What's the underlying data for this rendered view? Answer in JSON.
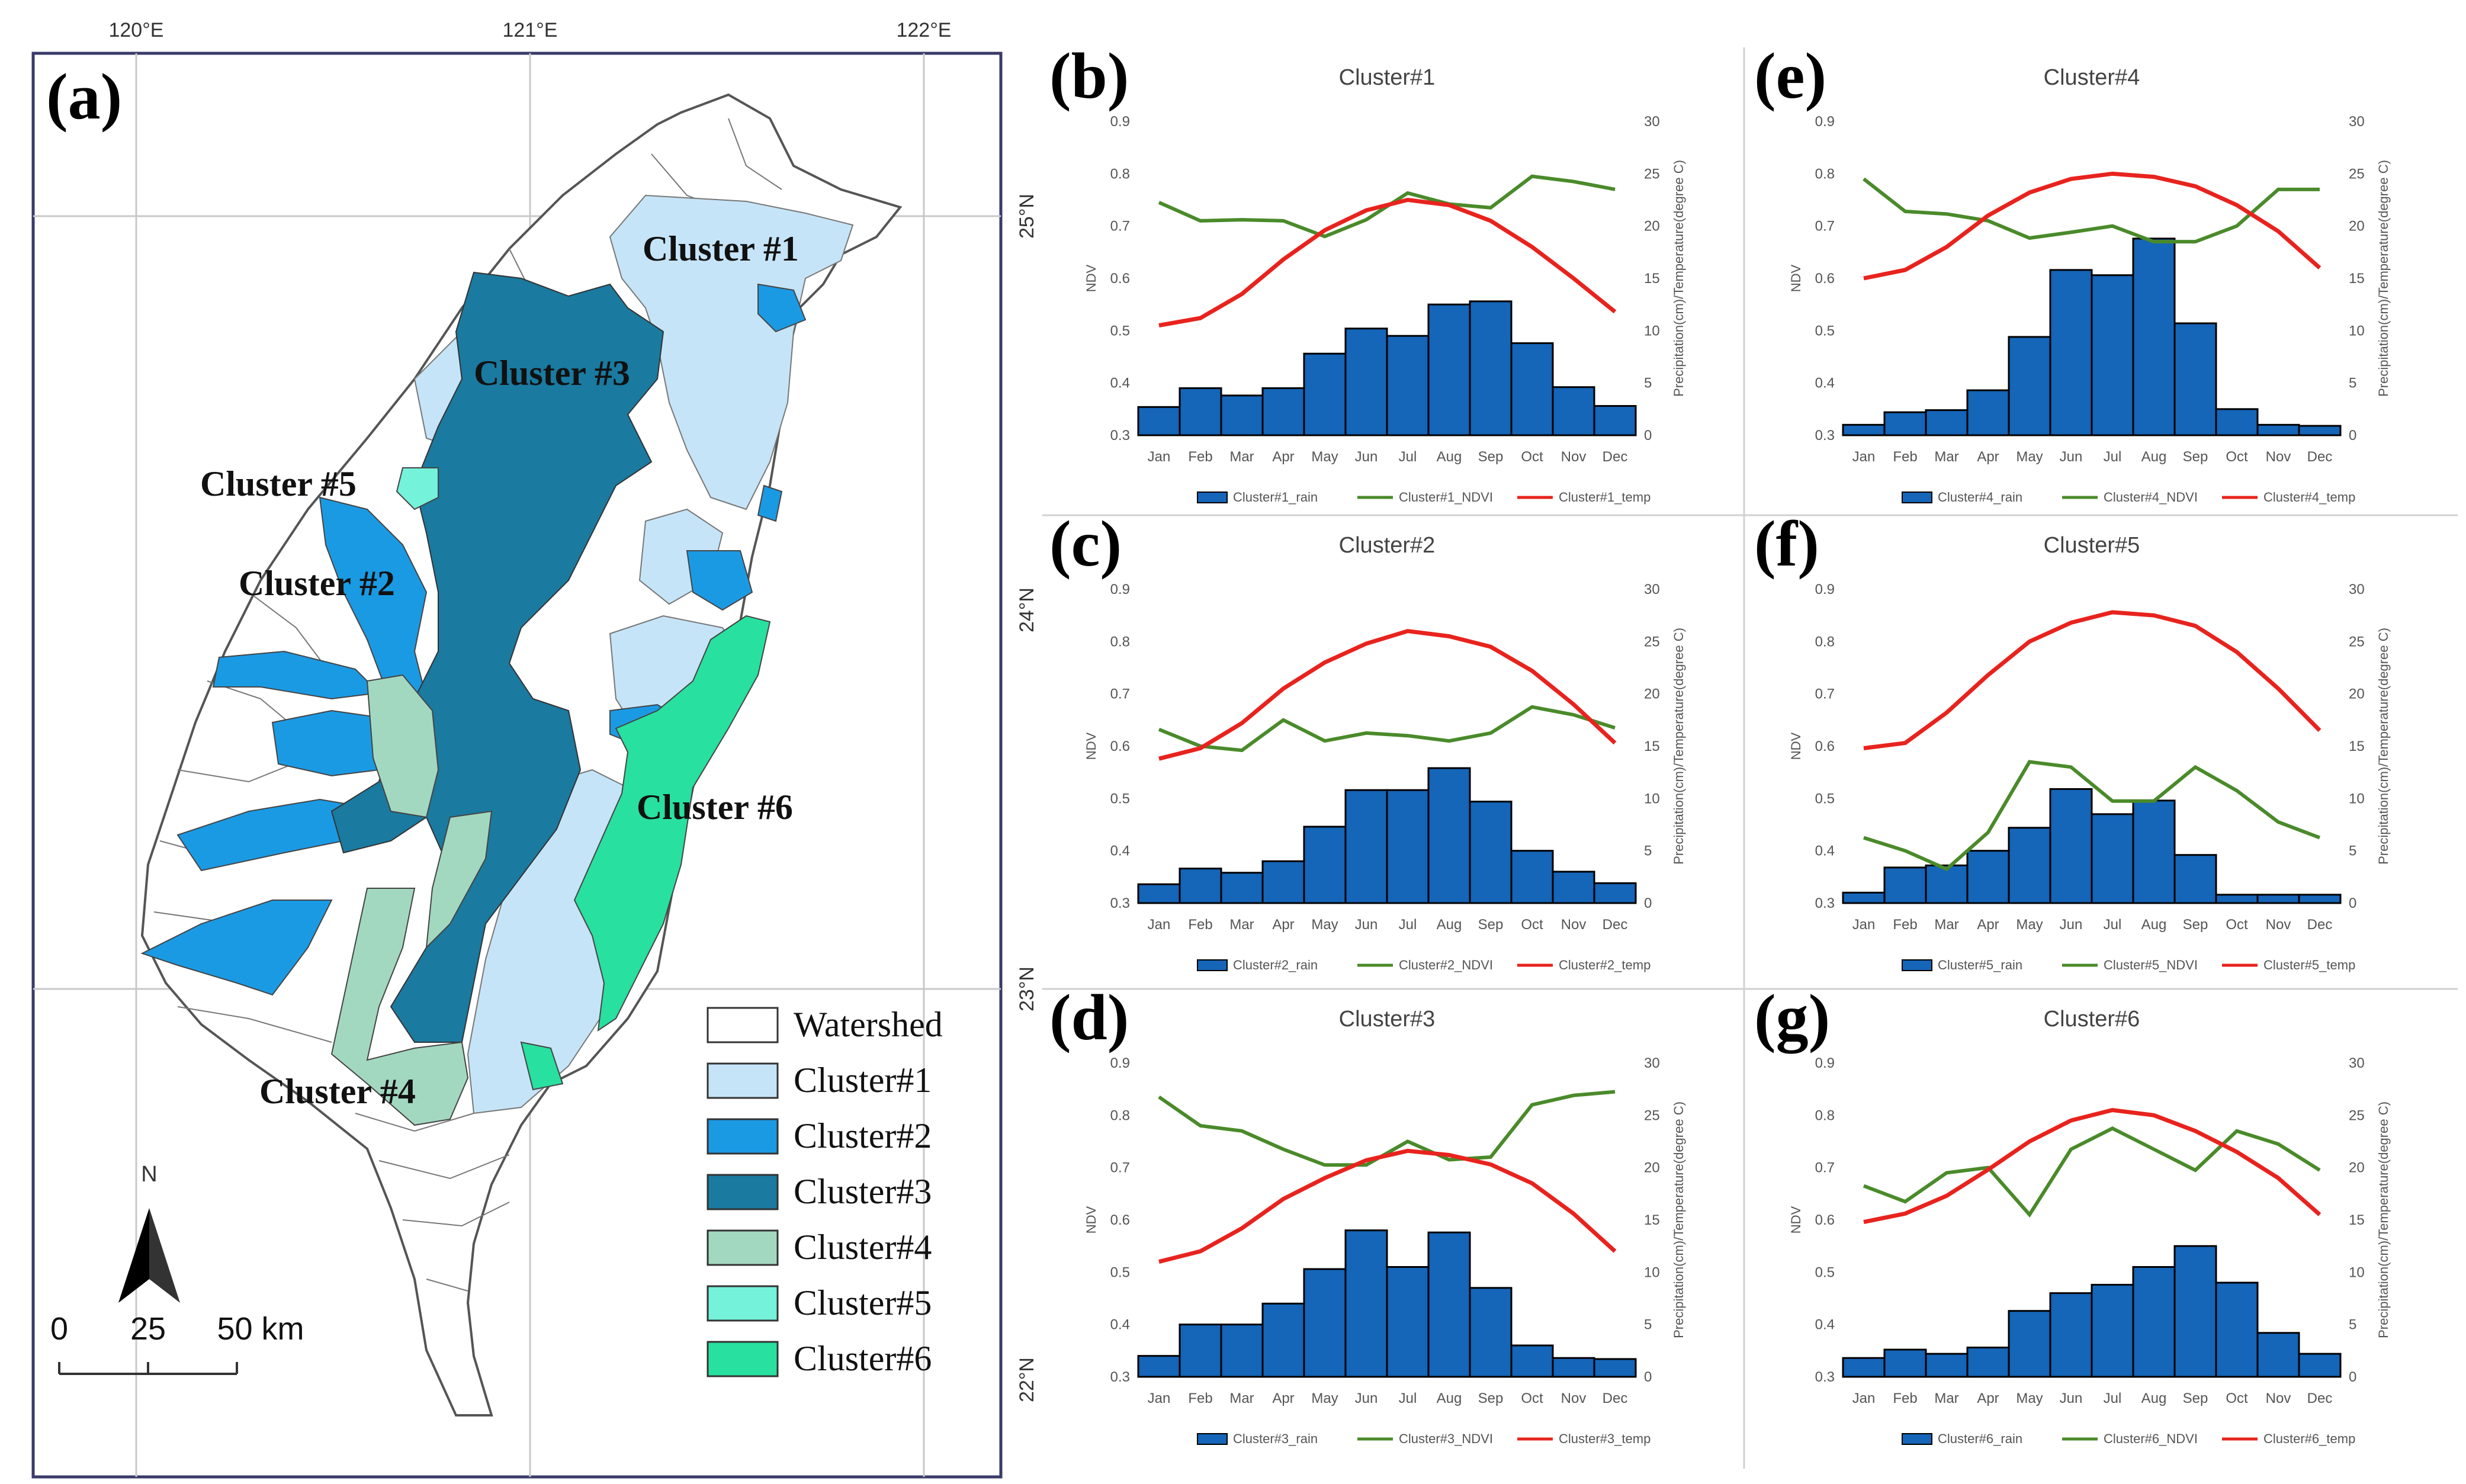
{
  "map": {
    "panel_label": "(a)",
    "lon_labels": [
      "120°E",
      "121°E",
      "122°E"
    ],
    "lat_labels": [
      "25°N",
      "24°N",
      "23°N",
      "22°N"
    ],
    "cluster_labels": [
      "Cluster #1",
      "Cluster #3",
      "Cluster #5",
      "Cluster #2",
      "Cluster #6",
      "Cluster #4"
    ],
    "legend": [
      {
        "label": "Watershed",
        "color": "#ffffff"
      },
      {
        "label": "Cluster#1",
        "color": "#c6e4f8"
      },
      {
        "label": "Cluster#2",
        "color": "#1b9ae4"
      },
      {
        "label": "Cluster#3",
        "color": "#1a7aa0"
      },
      {
        "label": "Cluster#4",
        "color": "#a3d8c0"
      },
      {
        "label": "Cluster#5",
        "color": "#74f2da"
      },
      {
        "label": "Cluster#6",
        "color": "#28e0a0"
      }
    ],
    "north_label": "N",
    "scale_labels": [
      "0",
      "25",
      "50 km"
    ]
  },
  "chart_common": {
    "months": [
      "Jan",
      "Feb",
      "Mar",
      "Apr",
      "May",
      "Jun",
      "Jul",
      "Aug",
      "Sep",
      "Oct",
      "Nov",
      "Dec"
    ],
    "left_ticks": [
      "0.3",
      "0.4",
      "0.5",
      "0.6",
      "0.7",
      "0.8",
      "0.9"
    ],
    "right_ticks": [
      "0",
      "5",
      "10",
      "15",
      "20",
      "25",
      "30"
    ],
    "left_axis_label": "NDV",
    "right_axis_label": "Precipitation(cm)/Temperature(degree C)"
  },
  "chart_data": [
    {
      "panel": "(b)",
      "type": "bar+line",
      "title": "Cluster#1",
      "legend": [
        "Cluster#1_rain",
        "Cluster#1_NDVI",
        "Cluster#1_temp"
      ],
      "ylim_left": [
        0.3,
        0.9
      ],
      "ylim_right": [
        0,
        30
      ],
      "rain": [
        2.7,
        4.5,
        3.8,
        4.5,
        7.8,
        10.2,
        9.5,
        12.5,
        12.8,
        8.8,
        4.6,
        2.8
      ],
      "ndvi": [
        0.745,
        0.71,
        0.712,
        0.71,
        0.68,
        0.712,
        0.763,
        0.742,
        0.735,
        0.795,
        0.785,
        0.77
      ],
      "temp": [
        10.5,
        11.2,
        13.5,
        16.8,
        19.6,
        21.5,
        22.5,
        22.0,
        20.5,
        18.0,
        15.0,
        11.8
      ]
    },
    {
      "panel": "(e)",
      "type": "bar+line",
      "title": "Cluster#4",
      "legend": [
        "Cluster#4_rain",
        "Cluster#4_NDVI",
        "Cluster#4_temp"
      ],
      "ylim_left": [
        0.3,
        0.9
      ],
      "ylim_right": [
        0,
        30
      ],
      "rain": [
        1.0,
        2.2,
        2.4,
        4.3,
        9.4,
        15.8,
        15.3,
        18.8,
        10.7,
        2.5,
        1.0,
        0.9
      ],
      "ndvi": [
        0.79,
        0.728,
        0.723,
        0.71,
        0.677,
        0.688,
        0.7,
        0.67,
        0.67,
        0.7,
        0.77,
        0.77
      ],
      "temp": [
        15.0,
        15.8,
        18.0,
        21.0,
        23.2,
        24.5,
        25.0,
        24.7,
        23.8,
        22.0,
        19.5,
        16.0
      ]
    },
    {
      "panel": "(c)",
      "type": "bar+line",
      "title": "Cluster#2",
      "legend": [
        "Cluster#2_rain",
        "Cluster#2_NDVI",
        "Cluster#2_temp"
      ],
      "ylim_left": [
        0.3,
        0.9
      ],
      "ylim_right": [
        0,
        30
      ],
      "rain": [
        1.8,
        3.3,
        2.9,
        4.0,
        7.3,
        10.8,
        10.8,
        12.9,
        9.7,
        5.0,
        3.0,
        1.9
      ],
      "ndvi": [
        0.632,
        0.6,
        0.592,
        0.65,
        0.61,
        0.625,
        0.62,
        0.61,
        0.625,
        0.675,
        0.66,
        0.635
      ],
      "temp": [
        13.8,
        14.8,
        17.2,
        20.5,
        23.0,
        24.8,
        26.0,
        25.5,
        24.5,
        22.2,
        19.0,
        15.3
      ]
    },
    {
      "panel": "(f)",
      "type": "bar+line",
      "title": "Cluster#5",
      "legend": [
        "Cluster#5_rain",
        "Cluster#5_NDVI",
        "Cluster#5_temp"
      ],
      "ylim_left": [
        0.3,
        0.9
      ],
      "ylim_right": [
        0,
        30
      ],
      "rain": [
        1.0,
        3.4,
        3.6,
        5.0,
        7.2,
        10.9,
        8.5,
        9.8,
        4.6,
        0.8,
        0.8,
        0.8
      ],
      "ndvi": [
        0.425,
        0.4,
        0.365,
        0.435,
        0.57,
        0.56,
        0.495,
        0.495,
        0.56,
        0.515,
        0.455,
        0.425
      ],
      "temp": [
        14.8,
        15.3,
        18.2,
        21.8,
        25.0,
        26.8,
        27.8,
        27.5,
        26.5,
        24.0,
        20.5,
        16.5
      ]
    },
    {
      "panel": "(d)",
      "type": "bar+line",
      "title": "Cluster#3",
      "legend": [
        "Cluster#3_rain",
        "Cluster#3_NDVI",
        "Cluster#3_temp"
      ],
      "ylim_left": [
        0.3,
        0.9
      ],
      "ylim_right": [
        0,
        30
      ],
      "rain": [
        2.0,
        5.0,
        5.0,
        7.0,
        10.3,
        14.0,
        10.5,
        13.8,
        8.5,
        3.0,
        1.8,
        1.7
      ],
      "ndvi": [
        0.835,
        0.78,
        0.77,
        0.735,
        0.705,
        0.705,
        0.75,
        0.715,
        0.72,
        0.82,
        0.838,
        0.845
      ],
      "temp": [
        11.0,
        12.0,
        14.2,
        17.0,
        19.0,
        20.7,
        21.6,
        21.2,
        20.3,
        18.5,
        15.6,
        12.0
      ]
    },
    {
      "panel": "(g)",
      "type": "bar+line",
      "title": "Cluster#6",
      "legend": [
        "Cluster#6_rain",
        "Cluster#6_NDVI",
        "Cluster#6_temp"
      ],
      "ylim_left": [
        0.3,
        0.9
      ],
      "ylim_right": [
        0,
        30
      ],
      "rain": [
        1.8,
        2.6,
        2.2,
        2.8,
        6.3,
        8.0,
        8.8,
        10.5,
        12.5,
        9.0,
        4.2,
        2.2
      ],
      "ndvi": [
        0.665,
        0.635,
        0.69,
        0.7,
        0.61,
        0.735,
        0.775,
        0.735,
        0.695,
        0.77,
        0.745,
        0.695
      ],
      "temp": [
        14.8,
        15.6,
        17.3,
        19.8,
        22.5,
        24.5,
        25.5,
        25.0,
        23.5,
        21.5,
        19.0,
        15.5
      ]
    }
  ]
}
